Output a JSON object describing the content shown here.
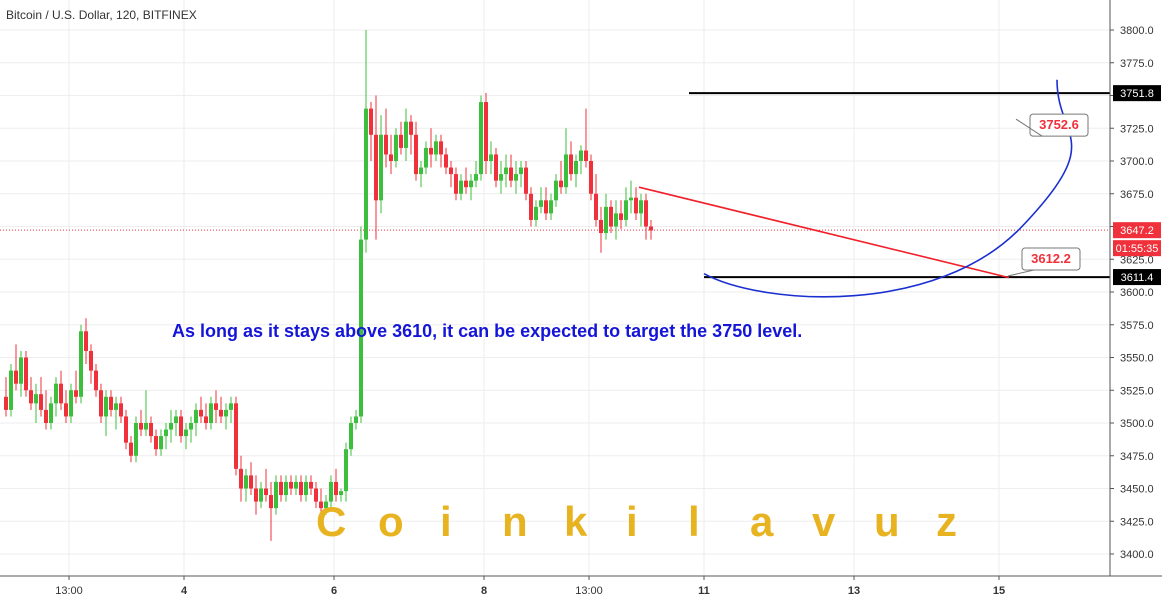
{
  "chart_data": {
    "type": "candlestick",
    "title": "Bitcoin / U.S. Dollar, 120, BITFINEX",
    "ylim": [
      3385,
      3810
    ],
    "y_ticks": [
      3400.0,
      3425.0,
      3450.0,
      3475.0,
      3500.0,
      3525.0,
      3550.0,
      3575.0,
      3600.0,
      3625.0,
      3650.0,
      3675.0,
      3700.0,
      3725.0,
      3750.0,
      3775.0,
      3800.0
    ],
    "x_ticks": [
      {
        "label": "13:00",
        "bar": 13
      },
      {
        "label": "4",
        "bar": 36
      },
      {
        "label": "6",
        "bar": 66
      },
      {
        "label": "8",
        "bar": 96
      },
      {
        "label": "13:00",
        "bar": 117
      },
      {
        "label": "11",
        "bar": 140
      },
      {
        "label": "13",
        "bar": 170
      },
      {
        "label": "15",
        "bar": 199
      }
    ],
    "last_price": "3647.2",
    "countdown": "01:55:35",
    "price_labels": [
      {
        "text": "3751.8",
        "value": 3751.8
      },
      {
        "text": "3611.4",
        "value": 3611.4
      }
    ],
    "callouts": [
      {
        "text": "3752.6",
        "value": 3752.6
      },
      {
        "text": "3612.2",
        "value": 3612.2
      }
    ],
    "annotation": "As long as it stays above 3610, it can be expected to target the 3750 level.",
    "watermark": [
      "C",
      "o",
      "i",
      "n",
      "k",
      "i",
      "l",
      "a",
      "v",
      "u",
      "z"
    ],
    "colors": {
      "up": "#3cbf3c",
      "down": "#f0303a",
      "hline": "#000000",
      "trend": "#f0202a",
      "arc": "#1a2fd0",
      "text": "#1515d8",
      "watermark": "#e8b321",
      "axis": "#555555"
    },
    "horizontal_levels": [
      3751.8,
      3611.4
    ],
    "trendline": {
      "from": [
        127,
        3680
      ],
      "to": [
        201,
        3611
      ]
    },
    "ohlc": [
      [
        3520,
        3535,
        3505,
        3510
      ],
      [
        3510,
        3545,
        3505,
        3540
      ],
      [
        3540,
        3560,
        3525,
        3530
      ],
      [
        3530,
        3555,
        3520,
        3550
      ],
      [
        3550,
        3555,
        3520,
        3525
      ],
      [
        3525,
        3535,
        3510,
        3515
      ],
      [
        3515,
        3530,
        3500,
        3522
      ],
      [
        3522,
        3535,
        3505,
        3510
      ],
      [
        3510,
        3525,
        3495,
        3500
      ],
      [
        3500,
        3520,
        3495,
        3515
      ],
      [
        3515,
        3535,
        3505,
        3530
      ],
      [
        3530,
        3540,
        3510,
        3515
      ],
      [
        3515,
        3525,
        3500,
        3505
      ],
      [
        3505,
        3530,
        3500,
        3525
      ],
      [
        3525,
        3540,
        3515,
        3520
      ],
      [
        3520,
        3575,
        3515,
        3570
      ],
      [
        3570,
        3580,
        3545,
        3555
      ],
      [
        3555,
        3560,
        3530,
        3540
      ],
      [
        3540,
        3545,
        3520,
        3525
      ],
      [
        3525,
        3530,
        3500,
        3505
      ],
      [
        3505,
        3525,
        3490,
        3520
      ],
      [
        3520,
        3525,
        3505,
        3510
      ],
      [
        3510,
        3520,
        3495,
        3515
      ],
      [
        3515,
        3520,
        3500,
        3505
      ],
      [
        3505,
        3510,
        3480,
        3485
      ],
      [
        3485,
        3490,
        3470,
        3475
      ],
      [
        3475,
        3505,
        3470,
        3500
      ],
      [
        3500,
        3510,
        3490,
        3495
      ],
      [
        3495,
        3525,
        3490,
        3500
      ],
      [
        3500,
        3505,
        3485,
        3490
      ],
      [
        3490,
        3495,
        3475,
        3480
      ],
      [
        3480,
        3495,
        3475,
        3490
      ],
      [
        3490,
        3500,
        3480,
        3495
      ],
      [
        3495,
        3510,
        3485,
        3500
      ],
      [
        3500,
        3510,
        3490,
        3505
      ],
      [
        3505,
        3510,
        3485,
        3490
      ],
      [
        3490,
        3500,
        3480,
        3495
      ],
      [
        3495,
        3505,
        3485,
        3500
      ],
      [
        3500,
        3515,
        3490,
        3510
      ],
      [
        3510,
        3520,
        3500,
        3505
      ],
      [
        3505,
        3515,
        3495,
        3500
      ],
      [
        3500,
        3520,
        3495,
        3515
      ],
      [
        3515,
        3525,
        3500,
        3510
      ],
      [
        3510,
        3520,
        3500,
        3505
      ],
      [
        3505,
        3515,
        3495,
        3510
      ],
      [
        3510,
        3520,
        3500,
        3515
      ],
      [
        3515,
        3520,
        3460,
        3465
      ],
      [
        3465,
        3475,
        3440,
        3450
      ],
      [
        3450,
        3465,
        3440,
        3460
      ],
      [
        3460,
        3470,
        3445,
        3450
      ],
      [
        3450,
        3460,
        3430,
        3440
      ],
      [
        3440,
        3455,
        3435,
        3450
      ],
      [
        3450,
        3465,
        3440,
        3445
      ],
      [
        3445,
        3455,
        3410,
        3435
      ],
      [
        3435,
        3460,
        3430,
        3455
      ],
      [
        3455,
        3460,
        3440,
        3445
      ],
      [
        3445,
        3460,
        3440,
        3455
      ],
      [
        3455,
        3460,
        3445,
        3450
      ],
      [
        3450,
        3460,
        3445,
        3455
      ],
      [
        3455,
        3460,
        3440,
        3445
      ],
      [
        3445,
        3460,
        3440,
        3455
      ],
      [
        3455,
        3460,
        3445,
        3450
      ],
      [
        3450,
        3455,
        3435,
        3440
      ],
      [
        3440,
        3450,
        3430,
        3435
      ],
      [
        3435,
        3445,
        3430,
        3440
      ],
      [
        3440,
        3460,
        3435,
        3455
      ],
      [
        3455,
        3465,
        3440,
        3445
      ],
      [
        3445,
        3450,
        3440,
        3448
      ],
      [
        3448,
        3485,
        3440,
        3480
      ],
      [
        3480,
        3505,
        3475,
        3500
      ],
      [
        3500,
        3510,
        3495,
        3505
      ],
      [
        3505,
        3650,
        3500,
        3640
      ],
      [
        3640,
        3800,
        3630,
        3740
      ],
      [
        3740,
        3745,
        3700,
        3720
      ],
      [
        3720,
        3750,
        3640,
        3670
      ],
      [
        3670,
        3735,
        3660,
        3720
      ],
      [
        3720,
        3740,
        3695,
        3705
      ],
      [
        3705,
        3720,
        3690,
        3700
      ],
      [
        3700,
        3725,
        3695,
        3720
      ],
      [
        3720,
        3730,
        3705,
        3710
      ],
      [
        3710,
        3740,
        3700,
        3730
      ],
      [
        3730,
        3735,
        3705,
        3720
      ],
      [
        3720,
        3730,
        3685,
        3690
      ],
      [
        3690,
        3700,
        3680,
        3695
      ],
      [
        3695,
        3715,
        3690,
        3710
      ],
      [
        3710,
        3725,
        3695,
        3705
      ],
      [
        3705,
        3720,
        3700,
        3715
      ],
      [
        3715,
        3720,
        3695,
        3705
      ],
      [
        3705,
        3710,
        3690,
        3695
      ],
      [
        3695,
        3700,
        3680,
        3690
      ],
      [
        3690,
        3695,
        3670,
        3675
      ],
      [
        3675,
        3690,
        3670,
        3685
      ],
      [
        3685,
        3695,
        3675,
        3680
      ],
      [
        3680,
        3690,
        3670,
        3685
      ],
      [
        3685,
        3700,
        3680,
        3690
      ],
      [
        3690,
        3750,
        3685,
        3745
      ],
      [
        3745,
        3752,
        3690,
        3700
      ],
      [
        3700,
        3715,
        3690,
        3705
      ],
      [
        3705,
        3710,
        3680,
        3685
      ],
      [
        3685,
        3700,
        3675,
        3690
      ],
      [
        3690,
        3705,
        3680,
        3695
      ],
      [
        3695,
        3705,
        3680,
        3685
      ],
      [
        3685,
        3700,
        3675,
        3690
      ],
      [
        3690,
        3700,
        3680,
        3695
      ],
      [
        3695,
        3700,
        3670,
        3675
      ],
      [
        3675,
        3680,
        3650,
        3655
      ],
      [
        3655,
        3670,
        3650,
        3665
      ],
      [
        3665,
        3680,
        3660,
        3670
      ],
      [
        3670,
        3680,
        3655,
        3660
      ],
      [
        3660,
        3675,
        3655,
        3670
      ],
      [
        3670,
        3690,
        3665,
        3685
      ],
      [
        3685,
        3700,
        3675,
        3680
      ],
      [
        3680,
        3725,
        3675,
        3705
      ],
      [
        3705,
        3715,
        3685,
        3690
      ],
      [
        3690,
        3705,
        3680,
        3700
      ],
      [
        3700,
        3712,
        3690,
        3708
      ],
      [
        3708,
        3740,
        3695,
        3700
      ],
      [
        3700,
        3705,
        3670,
        3675
      ],
      [
        3675,
        3690,
        3650,
        3655
      ],
      [
        3655,
        3665,
        3630,
        3645
      ],
      [
        3645,
        3675,
        3640,
        3665
      ],
      [
        3665,
        3670,
        3645,
        3650
      ],
      [
        3650,
        3670,
        3640,
        3660
      ],
      [
        3660,
        3670,
        3648,
        3655
      ],
      [
        3655,
        3680,
        3650,
        3670
      ],
      [
        3670,
        3685,
        3660,
        3672
      ],
      [
        3672,
        3680,
        3655,
        3660
      ],
      [
        3660,
        3675,
        3650,
        3670
      ],
      [
        3670,
        3675,
        3640,
        3650
      ],
      [
        3650,
        3655,
        3640,
        3647
      ]
    ]
  }
}
